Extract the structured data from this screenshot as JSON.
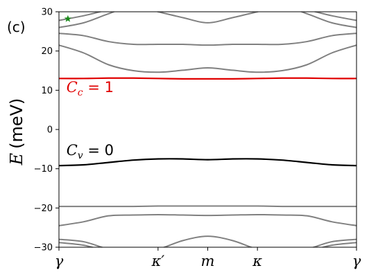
{
  "panel_label": "(c)",
  "colors": {
    "conduction": "#e00000",
    "valence": "#000000",
    "remote": "#808080",
    "marker": "#1a8a1a",
    "axis": "#000000"
  },
  "chart_data": {
    "type": "line",
    "ylabel_symbol": "E",
    "ylabel_unit": "(meV)",
    "ylim": [
      -30,
      30
    ],
    "yticks": [
      {
        "value": 30,
        "label": "30"
      },
      {
        "value": 20,
        "label": "20"
      },
      {
        "value": 10,
        "label": "10"
      },
      {
        "value": 0,
        "label": "0"
      },
      {
        "value": -10,
        "label": "−10"
      },
      {
        "value": -20,
        "label": "−20"
      },
      {
        "value": -30,
        "label": "−30"
      }
    ],
    "xlim": [
      0,
      1
    ],
    "xticks": [
      {
        "value": 0,
        "label": "γ"
      },
      {
        "value": 0.333,
        "label": "κ′"
      },
      {
        "value": 0.5,
        "label": "m"
      },
      {
        "value": 0.667,
        "label": "κ"
      },
      {
        "value": 1,
        "label": "γ"
      }
    ],
    "annotations": [
      {
        "symbol": "C",
        "subscript": "c",
        "text": " = 1",
        "x": 0.025,
        "y": 9.5,
        "color": "#e00000"
      },
      {
        "symbol": "C",
        "subscript": "v",
        "text": " = 0",
        "x": 0.025,
        "y": -6.5,
        "color": "#000000"
      }
    ],
    "marker": {
      "symbol": "star",
      "x": 0.03,
      "y": 28.2,
      "color": "#1a8a1a"
    },
    "x": [
      0,
      0.0833,
      0.1667,
      0.25,
      0.3333,
      0.4167,
      0.5,
      0.5833,
      0.6667,
      0.75,
      0.8333,
      0.9167,
      1
    ],
    "series": [
      {
        "role": "remote",
        "values": [
          24.5,
          23.9,
          22.4,
          21.7,
          21.7,
          21.7,
          21.5,
          21.7,
          21.7,
          21.7,
          22.4,
          23.9,
          24.5
        ]
      },
      {
        "role": "remote",
        "values": [
          21.5,
          19.5,
          16.5,
          15.0,
          14.6,
          15.1,
          15.7,
          15.1,
          14.6,
          15.0,
          16.5,
          19.5,
          21.5
        ]
      },
      {
        "role": "remote",
        "values": [
          26.0,
          27.2,
          29.5,
          31.5,
          30.0,
          28.5,
          27.2,
          28.5,
          30.0,
          31.5,
          29.5,
          27.2,
          26.0
        ]
      },
      {
        "role": "remote",
        "values": [
          27.8,
          29.0,
          30.5,
          31.5,
          31.5,
          31.0,
          30.5,
          31.0,
          31.5,
          31.5,
          30.5,
          29.0,
          27.8
        ]
      },
      {
        "role": "conduction",
        "values": [
          13.0,
          13.0,
          13.1,
          13.1,
          13.0,
          12.9,
          12.9,
          12.9,
          13.0,
          13.1,
          13.1,
          13.0,
          13.0
        ]
      },
      {
        "role": "valence",
        "values": [
          -9.2,
          -9.0,
          -8.4,
          -7.8,
          -7.5,
          -7.5,
          -7.7,
          -7.5,
          -7.5,
          -7.8,
          -8.4,
          -9.0,
          -9.2
        ]
      },
      {
        "role": "remote",
        "values": [
          -19.6,
          -19.6,
          -19.6,
          -19.6,
          -19.5,
          -19.5,
          -19.5,
          -19.5,
          -19.5,
          -19.6,
          -19.6,
          -19.6,
          -19.6
        ]
      },
      {
        "role": "remote",
        "values": [
          -24.5,
          -23.5,
          -22.0,
          -21.8,
          -21.7,
          -21.8,
          -21.9,
          -21.8,
          -21.7,
          -21.8,
          -22.0,
          -23.5,
          -24.5
        ]
      },
      {
        "role": "remote",
        "values": [
          -28.0,
          -28.6,
          -30.5,
          -31.5,
          -30.5,
          -28.3,
          -27.2,
          -28.3,
          -30.5,
          -31.5,
          -30.5,
          -28.6,
          -28.0
        ]
      },
      {
        "role": "remote",
        "values": [
          -28.8,
          -29.5,
          -31.0,
          -31.5,
          -31.5,
          -31.0,
          -30.5,
          -31.0,
          -31.5,
          -31.5,
          -31.0,
          -29.5,
          -28.8
        ]
      }
    ]
  }
}
